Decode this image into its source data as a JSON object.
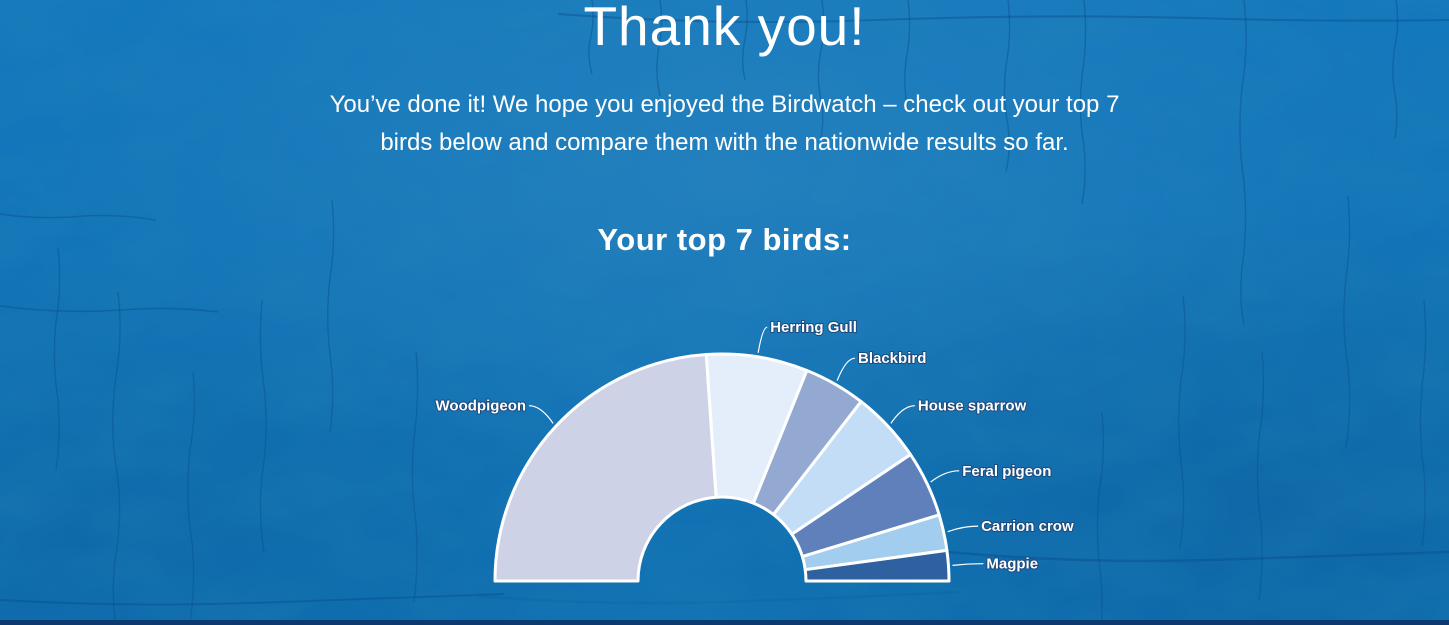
{
  "page": {
    "title": "Thank you!",
    "subtitle_line1": "You’ve done it! We hope you enjoyed the Birdwatch – check out your top 7",
    "subtitle_line2": "birds below and compare them with the nationwide results so far.",
    "background_color": "#1273b7",
    "bottom_bar_color": "#0b3a70",
    "text_color": "#ffffff"
  },
  "chart_data": {
    "type": "pie",
    "variant": "half-donut",
    "title": "Your top 7 birds:",
    "start_angle_deg": 180,
    "end_angle_deg": 0,
    "inner_radius_ratio": 0.37,
    "legend": "none",
    "label_position": "outside-with-connectors",
    "series": [
      {
        "label": "Woodpigeon",
        "share_pct": 47.8,
        "color": "#ced2e6"
      },
      {
        "label": "Herring Gull",
        "share_pct": 14.4,
        "color": "#e4eefb"
      },
      {
        "label": "Blackbird",
        "share_pct": 8.8,
        "color": "#93a9d2"
      },
      {
        "label": "House sparrow",
        "share_pct": 10.2,
        "color": "#c3ddf6"
      },
      {
        "label": "Feral pigeon",
        "share_pct": 9.4,
        "color": "#5f80bb"
      },
      {
        "label": "Carrion crow",
        "share_pct": 5.1,
        "color": "#a2cdee"
      },
      {
        "label": "Magpie",
        "share_pct": 4.3,
        "color": "#2f609f"
      }
    ]
  }
}
